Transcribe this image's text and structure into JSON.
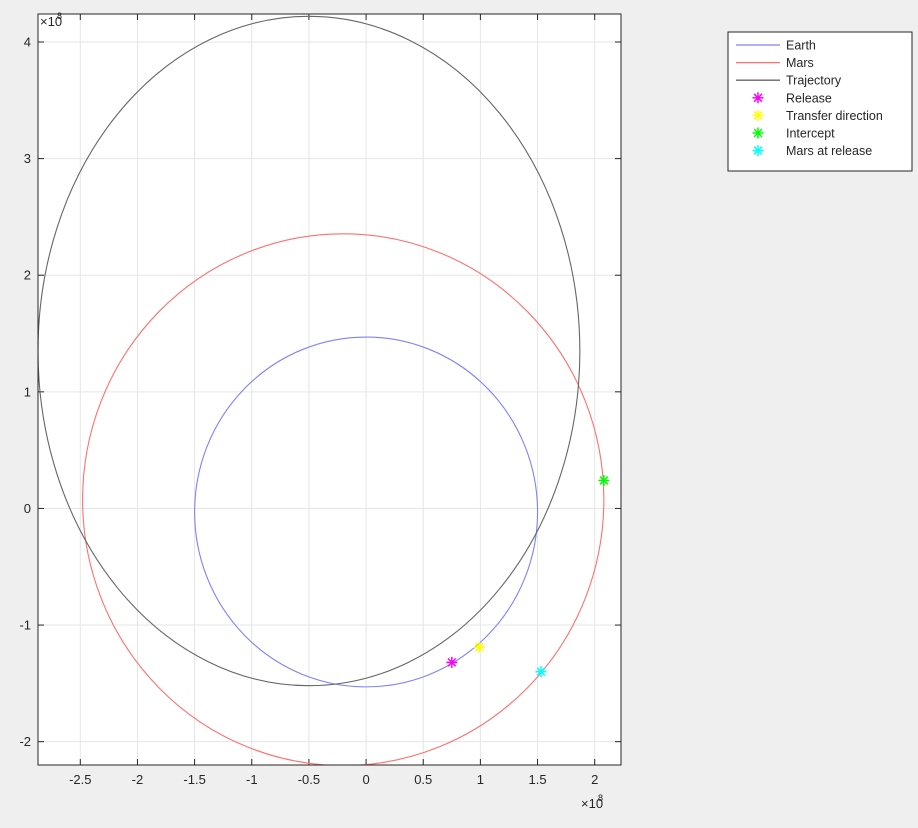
{
  "chart_data": {
    "type": "scatter",
    "xlim": [
      -2.87,
      2.23
    ],
    "ylim": [
      -2.2,
      4.24
    ],
    "x_ticks": [
      "-2.5",
      "-2",
      "-1.5",
      "-1",
      "-0.5",
      "0",
      "0.5",
      "1",
      "1.5",
      "2"
    ],
    "y_ticks": [
      "-2",
      "-1",
      "0",
      "1",
      "2",
      "3",
      "4"
    ],
    "x_exponent": "10",
    "x_exponent_power": "8",
    "y_exponent": "10",
    "y_exponent_power": "8",
    "x_exponent_prefix": "×10",
    "y_exponent_prefix": "×10",
    "grid": true,
    "legend_position": "top-right, outside axes",
    "series": [
      {
        "name": "Earth",
        "kind": "ellipse",
        "color": "#8080ff",
        "center": [
          0.0,
          -0.03
        ],
        "semi_axes": [
          1.5,
          1.5
        ]
      },
      {
        "name": "Mars",
        "kind": "ellipse",
        "color": "#ff7070",
        "center": [
          -0.2,
          0.075
        ],
        "semi_axes": [
          2.28,
          2.28
        ]
      },
      {
        "name": "Trajectory",
        "kind": "ellipse",
        "color": "#666666",
        "center": [
          -0.5,
          1.35
        ],
        "semi_axes": [
          2.37,
          2.87
        ]
      },
      {
        "name": "Release",
        "kind": "marker",
        "color": "#ff00ff",
        "points": [
          [
            0.75,
            -1.32
          ]
        ]
      },
      {
        "name": "Transfer direction",
        "kind": "marker",
        "color": "#ffff00",
        "points": [
          [
            0.99,
            -1.19
          ]
        ]
      },
      {
        "name": "Intercept",
        "kind": "marker",
        "color": "#00ff00",
        "points": [
          [
            2.08,
            0.24
          ]
        ]
      },
      {
        "name": "Mars at release",
        "kind": "marker",
        "color": "#00ffff",
        "points": [
          [
            1.53,
            -1.4
          ]
        ]
      }
    ],
    "legend": [
      "Earth",
      "Mars",
      "Trajectory",
      "Release",
      "Transfer direction",
      "Intercept",
      "Mars at release"
    ]
  }
}
